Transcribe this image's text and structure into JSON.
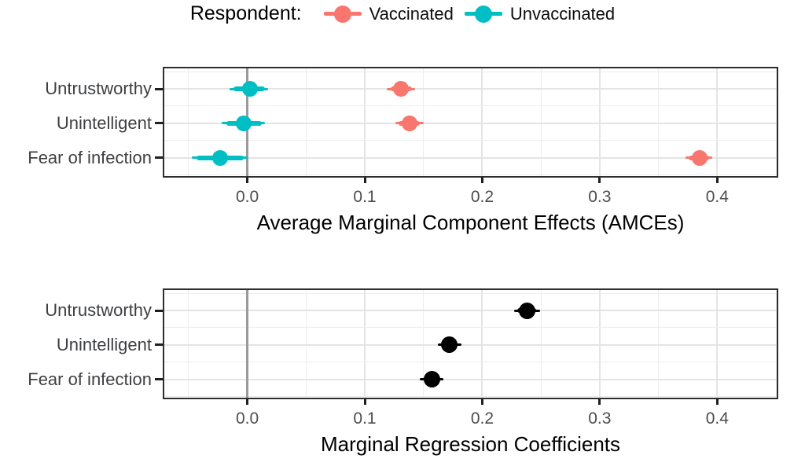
{
  "legend": {
    "title": "Respondent:",
    "items": [
      {
        "label": "Vaccinated",
        "color": "#F8766D"
      },
      {
        "label": "Unvaccinated",
        "color": "#00BFC4"
      }
    ]
  },
  "colors": {
    "vaccinated": "#F8766D",
    "unvaccinated": "#00BFC4",
    "pooled_black": "#000000",
    "zero_line": "#9a9a9a",
    "grid_major": "#e4e4e4",
    "grid_minor": "#ededed",
    "panel_border": "#2e2e2e",
    "axis_tick_text": "#4d4d4d",
    "category_text": "#3d3f42"
  },
  "chart_data": [
    {
      "type": "scatter",
      "subtype": "dot-whisker pointrange, horizontal",
      "xlabel": "Average Marginal Component Effects (AMCEs)",
      "categories": [
        "Untrustworthy",
        "Unintelligent",
        "Fear of infection"
      ],
      "xlim": [
        -0.072,
        0.452
      ],
      "xticks": [
        0.0,
        0.1,
        0.2,
        0.3,
        0.4
      ],
      "zero_line": 0.0,
      "grid": true,
      "legend_position": "top",
      "series": [
        {
          "name": "Vaccinated",
          "color": "#F8766D",
          "points": [
            {
              "category": "Untrustworthy",
              "estimate": 0.131,
              "ci_low": 0.119,
              "ci_high": 0.143,
              "inner_low": 0.122,
              "inner_high": 0.14
            },
            {
              "category": "Unintelligent",
              "estimate": 0.138,
              "ci_low": 0.126,
              "ci_high": 0.15,
              "inner_low": 0.129,
              "inner_high": 0.147
            },
            {
              "category": "Fear of infection",
              "estimate": 0.385,
              "ci_low": 0.373,
              "ci_high": 0.396,
              "inner_low": 0.376,
              "inner_high": 0.393
            }
          ]
        },
        {
          "name": "Unvaccinated",
          "color": "#00BFC4",
          "points": [
            {
              "category": "Untrustworthy",
              "estimate": 0.002,
              "ci_low": -0.015,
              "ci_high": 0.018,
              "inner_low": -0.012,
              "inner_high": 0.015
            },
            {
              "category": "Unintelligent",
              "estimate": -0.003,
              "ci_low": -0.022,
              "ci_high": 0.015,
              "inner_low": -0.018,
              "inner_high": 0.012
            },
            {
              "category": "Fear of infection",
              "estimate": -0.023,
              "ci_low": -0.047,
              "ci_high": 0.0,
              "inner_low": -0.043,
              "inner_high": -0.003
            }
          ]
        }
      ]
    },
    {
      "type": "scatter",
      "subtype": "dot-whisker pointrange, horizontal",
      "xlabel": "Marginal Regression Coefficients",
      "categories": [
        "Untrustworthy",
        "Unintelligent",
        "Fear of infection"
      ],
      "xlim": [
        -0.072,
        0.452
      ],
      "xticks": [
        0.0,
        0.1,
        0.2,
        0.3,
        0.4
      ],
      "zero_line": 0.0,
      "grid": true,
      "legend_position": "none",
      "series": [
        {
          "name": "",
          "color": "#000000",
          "points": [
            {
              "category": "Untrustworthy",
              "estimate": 0.238,
              "ci_low": 0.227,
              "ci_high": 0.249,
              "inner_low": 0.23,
              "inner_high": 0.246
            },
            {
              "category": "Unintelligent",
              "estimate": 0.172,
              "ci_low": 0.162,
              "ci_high": 0.182,
              "inner_low": 0.165,
              "inner_high": 0.179
            },
            {
              "category": "Fear of infection",
              "estimate": 0.157,
              "ci_low": 0.147,
              "ci_high": 0.167,
              "inner_low": 0.15,
              "inner_high": 0.164
            }
          ]
        }
      ]
    }
  ]
}
